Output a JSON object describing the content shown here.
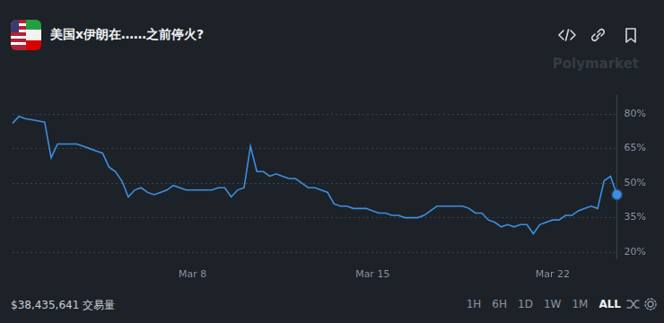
{
  "chart_data": {
    "type": "line",
    "title": "美国x伊朗在……之前停火?",
    "categories": [
      null,
      null,
      null,
      null,
      null,
      null,
      null,
      null,
      null,
      null,
      null,
      null,
      null,
      null,
      null,
      null,
      null,
      null,
      null,
      null,
      null,
      null,
      null,
      null,
      null,
      null,
      null,
      null,
      "Mar 8",
      null,
      null,
      null,
      null,
      null,
      null,
      null,
      null,
      null,
      null,
      null,
      null,
      null,
      null,
      null,
      null,
      null,
      null,
      null,
      null,
      null,
      null,
      null,
      null,
      null,
      null,
      null,
      "Mar 15",
      null,
      null,
      null,
      null,
      null,
      null,
      null,
      null,
      null,
      null,
      null,
      null,
      null,
      null,
      null,
      null,
      null,
      null,
      null,
      null,
      null,
      null,
      null,
      null,
      null,
      null,
      null,
      "Mar 22",
      null,
      null,
      null,
      null,
      null,
      null,
      null,
      null,
      null,
      null
    ],
    "values": [
      76,
      79,
      78,
      77.5,
      77,
      76.5,
      61,
      67,
      67,
      67,
      67,
      66,
      65,
      64,
      63,
      57,
      55,
      51,
      44,
      47,
      48,
      46,
      45,
      46,
      47,
      49,
      48,
      47,
      47,
      47,
      47,
      47,
      48,
      48,
      44,
      47,
      48,
      66,
      55,
      55,
      53,
      54,
      53,
      52,
      52,
      50,
      48,
      48,
      47,
      46,
      41,
      40,
      40,
      39,
      39,
      39,
      38,
      37,
      37,
      36,
      36,
      35,
      35,
      35,
      36,
      38,
      40,
      40,
      40,
      40,
      40,
      39,
      37,
      37,
      34,
      33,
      31,
      32,
      31,
      32,
      32,
      28,
      32,
      33,
      34,
      34,
      36,
      36,
      38,
      39,
      40,
      39,
      51,
      53,
      45
    ],
    "color": "#3b8fe3",
    "marker": "end_dot",
    "ylim": [
      17,
      88
    ],
    "yticks": [
      {
        "value": 20,
        "label": "20%"
      },
      {
        "value": 35,
        "label": "35%"
      },
      {
        "value": 50,
        "label": "50%"
      },
      {
        "value": 65,
        "label": "65%"
      },
      {
        "value": 80,
        "label": "80%"
      }
    ],
    "grid": true
  },
  "watermark": "Polymarket",
  "footer": {
    "volume": "$38,435,641 交易量",
    "range_buttons": [
      "1H",
      "6H",
      "1D",
      "1W",
      "1M",
      "ALL"
    ],
    "selected_range": "ALL"
  }
}
